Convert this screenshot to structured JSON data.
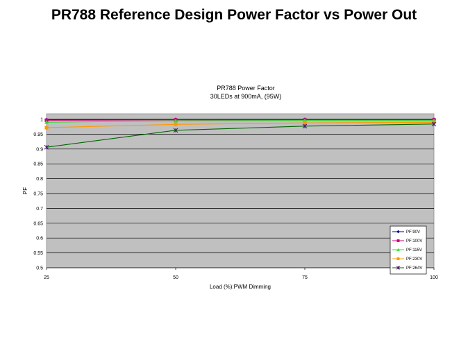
{
  "slide": {
    "title": "PR788 Reference Design Power Factor vs Power Out"
  },
  "chart_data": {
    "type": "line",
    "title": "PR788 Power Factor",
    "subtitle": "30LEDs at 900mA, (95W)",
    "xlabel": "Load (%):PWM Dimming",
    "ylabel": "PF",
    "x": [
      25,
      50,
      75,
      100
    ],
    "xlim": [
      25,
      100
    ],
    "xticks": [
      "25",
      "50",
      "75",
      "100"
    ],
    "ylim": [
      0.5,
      1.0
    ],
    "yticks": [
      "0.5",
      "0.55",
      "0.6",
      "0.65",
      "0.7",
      "0.75",
      "0.8",
      "0.85",
      "0.9",
      "0.95",
      "1"
    ],
    "grid": true,
    "legend_position": "bottom-right",
    "plot_background": "#c0c0c0",
    "series": [
      {
        "name": "PF:90V",
        "values": [
          0.998,
          0.999,
          0.999,
          0.999
        ],
        "color": "#000080",
        "marker": "diamond"
      },
      {
        "name": "PF:100V",
        "values": [
          0.997,
          0.998,
          0.998,
          0.998
        ],
        "color": "#cc0077",
        "marker": "square"
      },
      {
        "name": "PF:115V",
        "values": [
          0.99,
          0.995,
          0.996,
          0.996
        ],
        "color": "#33dd33",
        "marker": "triangle"
      },
      {
        "name": "PF:230V",
        "values": [
          0.972,
          0.983,
          0.988,
          0.99
        ],
        "color": "#ff9900",
        "marker": "square"
      },
      {
        "name": "PF:264V",
        "values": [
          0.906,
          0.963,
          0.977,
          0.984
        ],
        "color": "#006600",
        "marker": "star"
      }
    ]
  }
}
